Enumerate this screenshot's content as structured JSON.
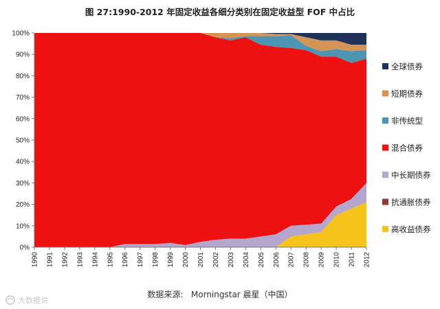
{
  "title": "图 27:1990-2012 年固定收益各细分类别在固定收益型 FOF 中占比",
  "source": "数据来源:   Morningstar 晨星（中国）",
  "watermark": "大数据说",
  "chart_data": {
    "type": "area",
    "stacked": true,
    "percent": true,
    "x": [
      "1990",
      "1991",
      "1992",
      "1993",
      "1994",
      "1995",
      "1996",
      "1997",
      "1998",
      "1999",
      "2000",
      "2001",
      "2002",
      "2003",
      "2004",
      "2005",
      "2006",
      "2007",
      "2008",
      "2009",
      "2010",
      "2011",
      "2012"
    ],
    "ylim": [
      0,
      100
    ],
    "yticks": [
      "0%",
      "10%",
      "20%",
      "30%",
      "40%",
      "50%",
      "60%",
      "70%",
      "80%",
      "90%",
      "100%"
    ],
    "legend_position": "right",
    "series": [
      {
        "name": "高收益债券",
        "color": "#f6c21c",
        "values": [
          0,
          0,
          0,
          0,
          0,
          0,
          0,
          0,
          0,
          0,
          0,
          0,
          0,
          0,
          0,
          0,
          0,
          5,
          6,
          7,
          15,
          18,
          21
        ]
      },
      {
        "name": "抗通胀债券",
        "color": "#8b3a3a",
        "values": [
          0,
          0,
          0,
          0,
          0,
          0,
          0,
          0,
          0,
          0,
          0,
          0,
          0,
          0,
          0,
          0,
          0,
          0,
          0,
          0,
          0,
          0,
          0
        ]
      },
      {
        "name": "中长期债券",
        "color": "#b4a6cc",
        "values": [
          0,
          0,
          0,
          0,
          0,
          0,
          1.5,
          1.5,
          1.5,
          2,
          1,
          2.5,
          3.5,
          4,
          4,
          5,
          6,
          5,
          4.5,
          4,
          4,
          4.5,
          9
        ]
      },
      {
        "name": "混合债券",
        "color": "#ee1111",
        "values": [
          100,
          100,
          100,
          100,
          100,
          100,
          98.5,
          98.5,
          98.5,
          98,
          99,
          97.5,
          94.5,
          92.5,
          94,
          89.5,
          87.5,
          83,
          81.5,
          78,
          70,
          63.5,
          58
        ]
      },
      {
        "name": "非传统型",
        "color": "#4e95b4",
        "values": [
          0,
          0,
          0,
          0,
          0,
          0,
          0,
          0,
          0,
          0,
          0,
          0,
          0,
          1,
          0.5,
          4,
          5,
          6,
          2,
          2.5,
          3.5,
          5.5,
          4
        ]
      },
      {
        "name": "短期债券",
        "color": "#d39456",
        "values": [
          0,
          0,
          0,
          0,
          0,
          0,
          0,
          0,
          0,
          0,
          0,
          0,
          2,
          2.5,
          1.5,
          1.5,
          1,
          0.5,
          4,
          5,
          4,
          3,
          2.5
        ]
      },
      {
        "name": "全球债券",
        "color": "#1f3358",
        "values": [
          0,
          0,
          0,
          0,
          0,
          0,
          0,
          0,
          0,
          0,
          0,
          0,
          0,
          0,
          0,
          0,
          0.5,
          0.5,
          2,
          3.5,
          3.5,
          5.5,
          5.5
        ]
      }
    ]
  }
}
